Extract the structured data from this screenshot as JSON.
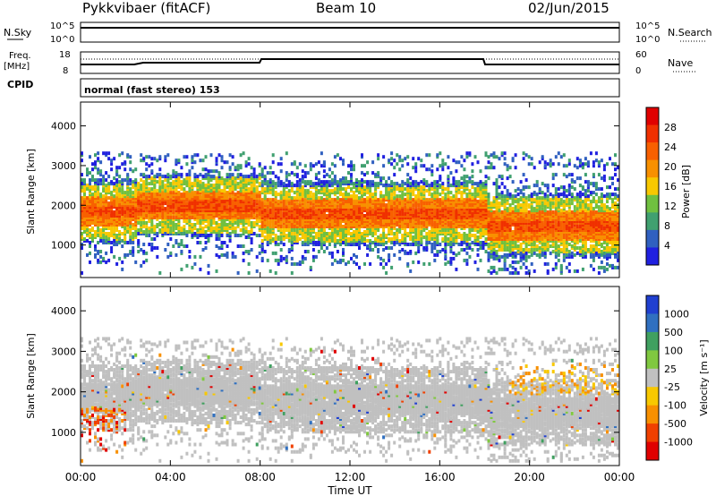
{
  "header": {
    "station": "Pykkvibaer (fitACF)",
    "beam": "Beam 10",
    "date": "02/Jun/2015"
  },
  "panels": {
    "nsky": {
      "label": "N.Sky",
      "tick_top": "10^5",
      "tick_bottom": "10^0",
      "right_label": "N.Search",
      "right_tick_top": "10^5",
      "right_tick_bottom": "10^0"
    },
    "freq": {
      "label_line1": "Freq.",
      "label_line2": "[MHz]",
      "tick_top": "18",
      "tick_bottom": "8",
      "right_label": "Nave",
      "right_tick_top": "60",
      "right_tick_bottom": "0"
    },
    "cpid": {
      "label": "CPID",
      "text": "normal (fast stereo) 153"
    }
  },
  "colorbars": {
    "power": {
      "label": "Power [dB]",
      "ticks": [
        "28",
        "24",
        "20",
        "16",
        "12",
        "8",
        "4"
      ],
      "colors": [
        "#e00000",
        "#f03000",
        "#f86000",
        "#f89000",
        "#f8c800",
        "#70c040",
        "#40a070",
        "#3060c0",
        "#2020e0"
      ]
    },
    "velocity": {
      "label": "Velocity [m s⁻¹]",
      "ticks": [
        "1000",
        "500",
        "100",
        "25",
        "-25",
        "-100",
        "-500",
        "-1000"
      ],
      "colors": [
        "#2040d0",
        "#3070c0",
        "#40a060",
        "#80c840",
        "#c0c0c0",
        "#f8c800",
        "#f89000",
        "#f04000",
        "#e00000"
      ]
    }
  },
  "chart_data": [
    {
      "type": "heatmap",
      "title": "Power",
      "xlabel": "Time UT",
      "ylabel": "Slant Range [km]",
      "xticks": [
        "00:00",
        "04:00",
        "08:00",
        "12:00",
        "16:00",
        "20:00",
        "00:00"
      ],
      "yticks": [
        "1000",
        "2000",
        "3000",
        "4000"
      ],
      "xlim_hours": [
        0,
        24
      ],
      "ylim_km": [
        180,
        4600
      ],
      "bands": [
        {
          "t0": 0.0,
          "t1": 2.5,
          "center_km": 1800,
          "peak_db": 28
        },
        {
          "t0": 2.5,
          "t1": 8.0,
          "center_km": 1950,
          "peak_db": 26
        },
        {
          "t0": 8.0,
          "t1": 18.0,
          "center_km": 1750,
          "peak_db": 28
        },
        {
          "t0": 18.0,
          "t1": 24.0,
          "center_km": 1450,
          "peak_db": 30
        }
      ]
    },
    {
      "type": "heatmap",
      "title": "Velocity",
      "xlabel": "Time UT",
      "ylabel": "Slant Range [km]",
      "xticks": [
        "00:00",
        "04:00",
        "08:00",
        "12:00",
        "16:00",
        "20:00",
        "00:00"
      ],
      "yticks": [
        "1000",
        "2000",
        "3000",
        "4000"
      ],
      "xlim_hours": [
        0,
        24
      ],
      "ylim_km": [
        180,
        4600
      ],
      "dominant_velocity_ms": 0,
      "notes_from_figure": "ground scatter (grey) dominates; negative velocities near 00:00-02:00 and 19:00-24:00"
    }
  ],
  "time_axis": {
    "label": "Time UT"
  }
}
